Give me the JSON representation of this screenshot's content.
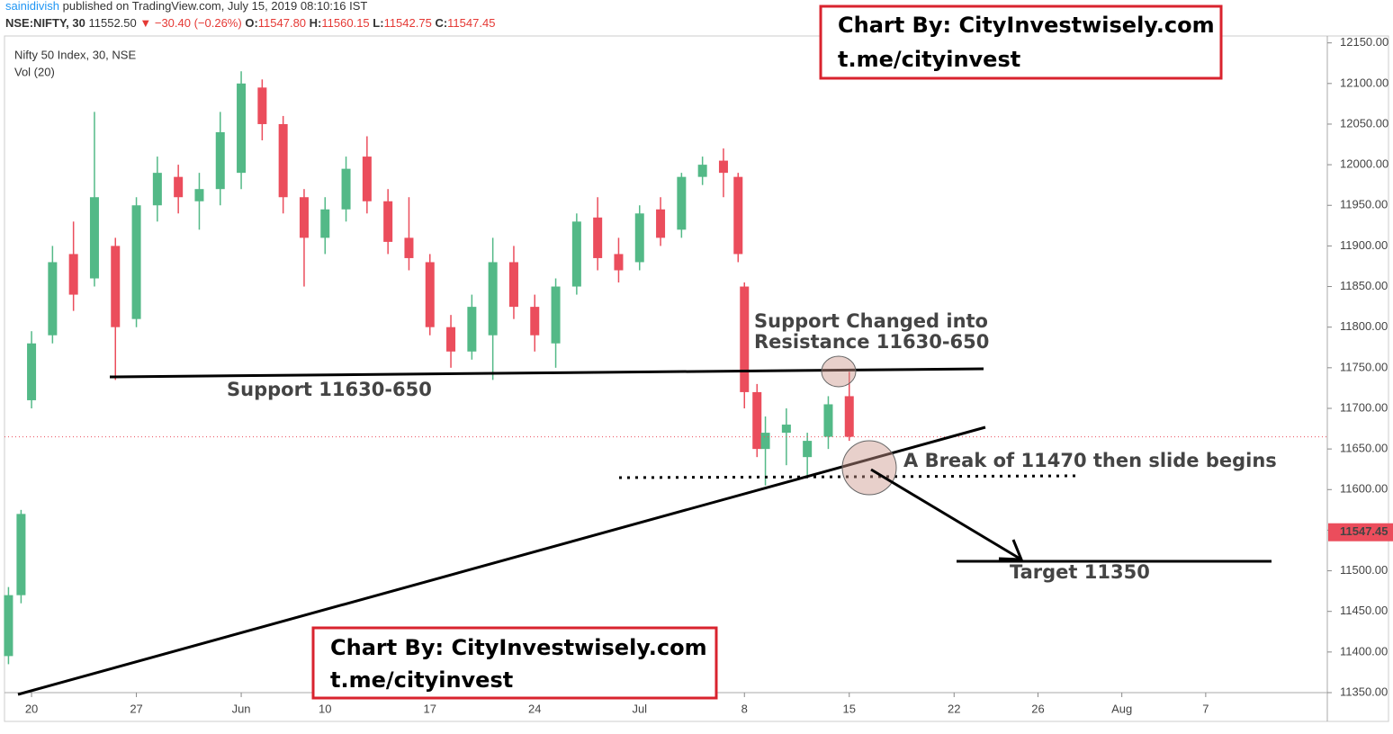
{
  "header": {
    "author": "sainidivish",
    "published": "published on TradingView.com, July 15, 2019 08:10:16 IST",
    "symbol": "NSE:NIFTY, 30",
    "price": "11552.50",
    "change": "▼ −30.40 (−0.26%)",
    "ohlc": [
      {
        "label": "O:",
        "value": "11547.80"
      },
      {
        "label": "H:",
        "value": "11560.15"
      },
      {
        "label": "L:",
        "value": "11542.75"
      },
      {
        "label": "C:",
        "value": "11547.45"
      }
    ]
  },
  "watermark": [
    "Chart By: CityInvestwisely.com",
    "t.me/cityinvest"
  ],
  "chart_data": {
    "type": "candlestick",
    "title": "Nifty 50 Index, 30, NSE",
    "subtitle": "Vol (20)",
    "up_color": "#53b987",
    "down_color": "#eb4d5c",
    "x": [
      -1.1,
      -0.5,
      0,
      1,
      2,
      3,
      4,
      5,
      6,
      7,
      8,
      9,
      10,
      11,
      12,
      13,
      14,
      15,
      16,
      17,
      18,
      19,
      20,
      21,
      22,
      23,
      24,
      25,
      26,
      27,
      28,
      29,
      30,
      31,
      32,
      33,
      33.7,
      34,
      34.6,
      35,
      36,
      37,
      38,
      39
    ],
    "open": [
      11395,
      11470,
      11710,
      11790,
      11890,
      11860,
      11900,
      11810,
      11950,
      11985,
      11955,
      11970,
      11990,
      12095,
      12050,
      11960,
      11910,
      11945,
      12010,
      11955,
      11910,
      11880,
      11800,
      11770,
      11790,
      11880,
      11825,
      11780,
      11850,
      11935,
      11890,
      11880,
      11945,
      11920,
      11985,
      12005,
      11985,
      11850,
      11720,
      11650,
      11670,
      11640,
      11665,
      11715
    ],
    "high": [
      11480,
      11575,
      11795,
      11900,
      11930,
      12065,
      11910,
      11960,
      12010,
      12000,
      11990,
      12065,
      12115,
      12105,
      12060,
      11970,
      11960,
      12010,
      12035,
      11970,
      11960,
      11890,
      11815,
      11840,
      11910,
      11900,
      11840,
      11860,
      11940,
      11960,
      11910,
      11950,
      11960,
      11990,
      12010,
      12020,
      11990,
      11855,
      11730,
      11690,
      11700,
      11670,
      11715,
      11745
    ],
    "low": [
      11385,
      11460,
      11700,
      11780,
      11820,
      11850,
      11735,
      11800,
      11930,
      11940,
      11920,
      11950,
      11970,
      12030,
      11940,
      11850,
      11890,
      11930,
      11940,
      11890,
      11870,
      11790,
      11750,
      11760,
      11735,
      11810,
      11770,
      11750,
      11840,
      11870,
      11855,
      11870,
      11900,
      11910,
      11975,
      11960,
      11880,
      11700,
      11640,
      11605,
      11630,
      11615,
      11650,
      11660
    ],
    "close": [
      11470,
      11570,
      11780,
      11880,
      11840,
      11960,
      11800,
      11950,
      11990,
      11960,
      11970,
      12040,
      12100,
      12050,
      11960,
      11910,
      11945,
      11995,
      11955,
      11905,
      11885,
      11800,
      11770,
      11825,
      11880,
      11825,
      11790,
      11850,
      11930,
      11885,
      11870,
      11940,
      11910,
      11985,
      12000,
      11990,
      11890,
      11720,
      11650,
      11670,
      11680,
      11660,
      11705,
      11665
    ],
    "last_price": {
      "value": 11547.45,
      "label": "11547.45"
    },
    "xlim": [
      -1.29,
      61.8
    ],
    "ylim": [
      11350,
      12158.5
    ],
    "xticks": [
      {
        "value": 0,
        "label": "20"
      },
      {
        "value": 5,
        "label": "27"
      },
      {
        "value": 10,
        "label": "Jun"
      },
      {
        "value": 14,
        "label": "10"
      },
      {
        "value": 19,
        "label": "17"
      },
      {
        "value": 24,
        "label": "24"
      },
      {
        "value": 29,
        "label": "Jul"
      },
      {
        "value": 34,
        "label": "8"
      },
      {
        "value": 39,
        "label": "15"
      },
      {
        "value": 44,
        "label": "22"
      },
      {
        "value": 48,
        "label": "26"
      },
      {
        "value": 52,
        "label": "Aug"
      },
      {
        "value": 56,
        "label": "7"
      }
    ],
    "yticks": [
      {
        "value": 11350,
        "label": "11350.00"
      },
      {
        "value": 11400,
        "label": "11400.00"
      },
      {
        "value": 11450,
        "label": "11450.00"
      },
      {
        "value": 11500,
        "label": "11500.00"
      },
      {
        "value": 11550,
        "label": "11550.00"
      },
      {
        "value": 11600,
        "label": "11600.00"
      },
      {
        "value": 11650,
        "label": "11650.00"
      },
      {
        "value": 11700,
        "label": "11700.00"
      },
      {
        "value": 11750,
        "label": "11750.00"
      },
      {
        "value": 11800,
        "label": "11800.00"
      },
      {
        "value": 11850,
        "label": "11850.00"
      },
      {
        "value": 11900,
        "label": "11900.00"
      },
      {
        "value": 11950,
        "label": "11950.00"
      },
      {
        "value": 12000,
        "label": "12000.00"
      },
      {
        "value": 12050,
        "label": "12050.00"
      },
      {
        "value": 12100,
        "label": "12100.00"
      },
      {
        "value": 12150,
        "label": "12150.00"
      }
    ],
    "annotations": [
      "Support 11630-650",
      "Support Changed into",
      "Resistance 11630-650",
      "A Break of 11470 then slide begins",
      "Target 11350"
    ]
  }
}
